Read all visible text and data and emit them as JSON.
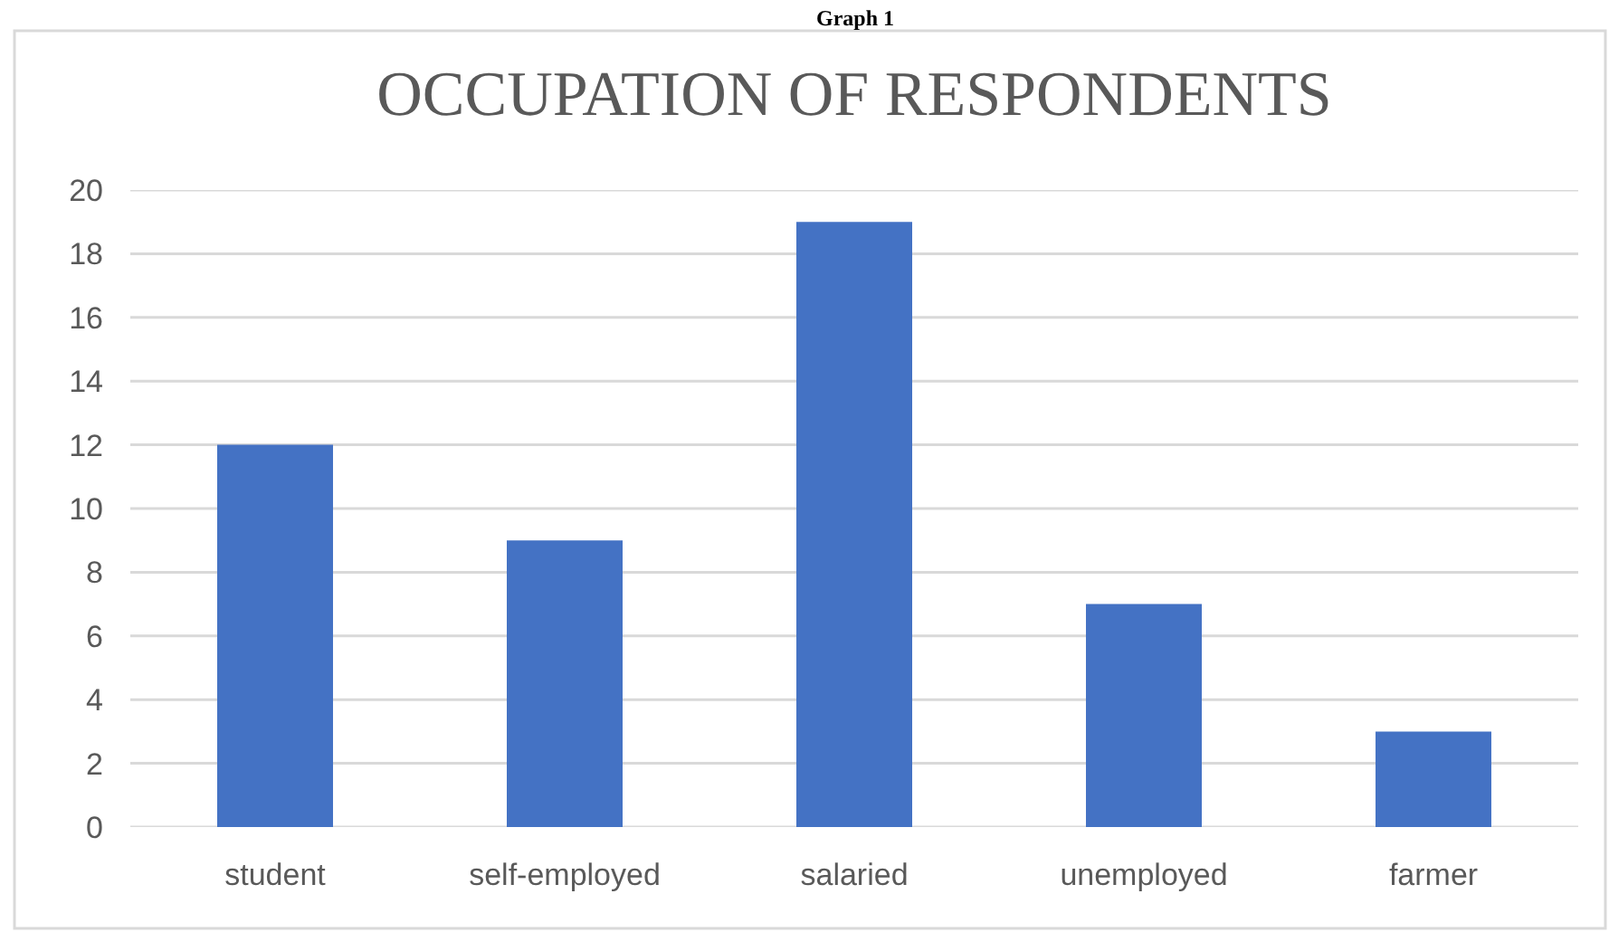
{
  "chart_data": {
    "type": "bar",
    "title": "OCCUPATION OF RESPONDENTS",
    "annotations": [
      "Graph 1"
    ],
    "categories": [
      "student",
      "self-employed",
      "salaried",
      "unemployed",
      "farmer"
    ],
    "values": [
      12,
      9,
      19,
      7,
      3
    ],
    "color": "#4472c4",
    "ylim": [
      0,
      20
    ],
    "yticks": [
      0,
      2,
      4,
      6,
      8,
      10,
      12,
      14,
      16,
      18,
      20
    ],
    "grid": "y"
  }
}
